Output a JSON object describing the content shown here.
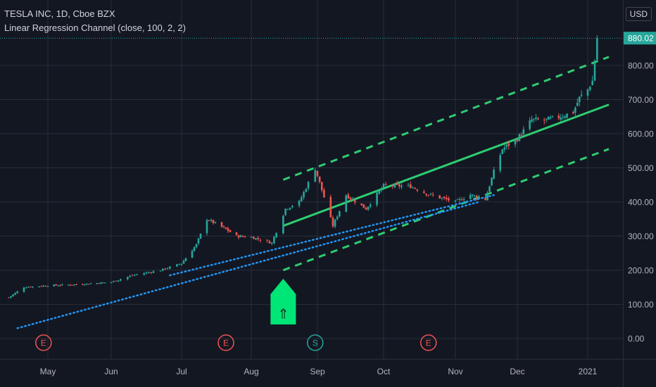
{
  "header": {
    "title": "TESLA INC, 1D, Cboe BZX",
    "indicator": "Linear Regression Channel (close, 100, 2, 2)"
  },
  "currency": "USD",
  "colors": {
    "background": "#131722",
    "grid": "#2a2e39",
    "up": "#26a69a",
    "down": "#ef5350",
    "regression": "#2ecc71",
    "trendline": "#2196f3",
    "price_label": "#26a69a",
    "arrow": "#00e676"
  },
  "events": [
    {
      "label": "E",
      "kind": "earnings",
      "date": "2020-04-29"
    },
    {
      "label": "E",
      "kind": "earnings",
      "date": "2020-07-22"
    },
    {
      "label": "S",
      "kind": "split",
      "date": "2020-08-31"
    },
    {
      "label": "E",
      "kind": "earnings",
      "date": "2020-10-21"
    }
  ],
  "signal": {
    "type": "arrow-up",
    "icon": "up-arrow-icon",
    "date": "2020-08-17",
    "price": 175
  },
  "chart_data": {
    "type": "candlestick",
    "title": "TESLA INC, 1D, Cboe BZX",
    "ylim": [
      -50,
      930
    ],
    "y_ticks": [
      "0.00",
      "100.00",
      "200.00",
      "300.00",
      "400.00",
      "500.00",
      "600.00",
      "700.00",
      "800.00",
      "880.02"
    ],
    "x_ticks": [
      "May",
      "Jun",
      "Jul",
      "Aug",
      "Sep",
      "Oct",
      "Nov",
      "Dec",
      "2021"
    ],
    "x_tick_dates": [
      "2020-05-01",
      "2020-06-01",
      "2020-07-01",
      "2020-08-03",
      "2020-09-01",
      "2020-10-01",
      "2020-11-02",
      "2020-12-01",
      "2021-01-04"
    ],
    "last_price": "880.02",
    "regression_channel": {
      "start": {
        "date": "2020-08-17",
        "center": 330,
        "upper": 465,
        "lower": 200
      },
      "end": {
        "date": "2021-01-13",
        "center": 685,
        "upper": 825,
        "lower": 555
      }
    },
    "trendlines": [
      {
        "from": {
          "date": "2020-04-17",
          "price": 30
        },
        "to": {
          "date": "2020-11-13",
          "price": 400
        }
      },
      {
        "from": {
          "date": "2020-06-26",
          "price": 185
        },
        "to": {
          "date": "2020-11-20",
          "price": 420
        }
      }
    ],
    "key_points": [
      {
        "date": "2020-04-13",
        "close": 120
      },
      {
        "date": "2020-04-20",
        "close": 150
      },
      {
        "date": "2020-05-01",
        "close": 155
      },
      {
        "date": "2020-05-15",
        "close": 158
      },
      {
        "date": "2020-06-01",
        "close": 165
      },
      {
        "date": "2020-06-10",
        "close": 185
      },
      {
        "date": "2020-06-22",
        "close": 200
      },
      {
        "date": "2020-07-01",
        "close": 220
      },
      {
        "date": "2020-07-08",
        "close": 275
      },
      {
        "date": "2020-07-13",
        "close": 350
      },
      {
        "date": "2020-07-22",
        "close": 320
      },
      {
        "date": "2020-07-27",
        "close": 300
      },
      {
        "date": "2020-08-03",
        "close": 297
      },
      {
        "date": "2020-08-12",
        "close": 280
      },
      {
        "date": "2020-08-18",
        "close": 380
      },
      {
        "date": "2020-08-24",
        "close": 400
      },
      {
        "date": "2020-08-31",
        "close": 498
      },
      {
        "date": "2020-09-08",
        "close": 330
      },
      {
        "date": "2020-09-14",
        "close": 420
      },
      {
        "date": "2020-09-23",
        "close": 380
      },
      {
        "date": "2020-10-01",
        "close": 448
      },
      {
        "date": "2020-10-13",
        "close": 446
      },
      {
        "date": "2020-10-21",
        "close": 422
      },
      {
        "date": "2020-11-02",
        "close": 400
      },
      {
        "date": "2020-11-09",
        "close": 421
      },
      {
        "date": "2020-11-16",
        "close": 408
      },
      {
        "date": "2020-11-20",
        "close": 489
      },
      {
        "date": "2020-11-24",
        "close": 555
      },
      {
        "date": "2020-12-01",
        "close": 585
      },
      {
        "date": "2020-12-08",
        "close": 641
      },
      {
        "date": "2020-12-14",
        "close": 639
      },
      {
        "date": "2020-12-21",
        "close": 649
      },
      {
        "date": "2020-12-28",
        "close": 663
      },
      {
        "date": "2020-12-31",
        "close": 705
      },
      {
        "date": "2021-01-04",
        "close": 730
      },
      {
        "date": "2021-01-06",
        "close": 755
      },
      {
        "date": "2021-01-07",
        "close": 816
      },
      {
        "date": "2021-01-08",
        "close": 880.02
      }
    ]
  }
}
